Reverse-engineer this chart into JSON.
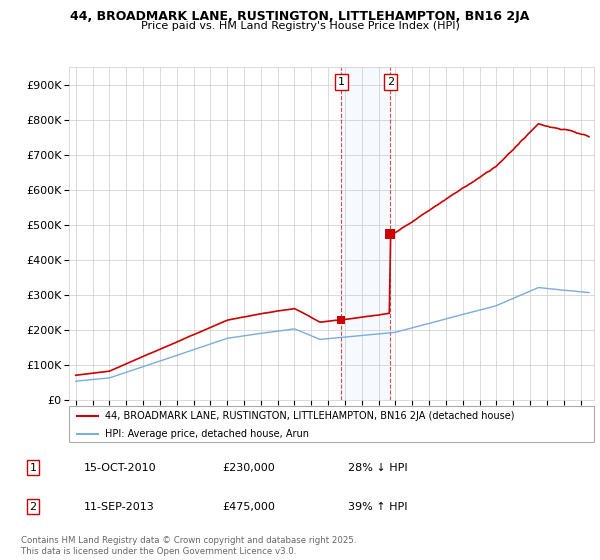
{
  "title1": "44, BROADMARK LANE, RUSTINGTON, LITTLEHAMPTON, BN16 2JA",
  "title2": "Price paid vs. HM Land Registry's House Price Index (HPI)",
  "legend_line1": "44, BROADMARK LANE, RUSTINGTON, LITTLEHAMPTON, BN16 2JA (detached house)",
  "legend_line2": "HPI: Average price, detached house, Arun",
  "sale1_label": "1",
  "sale1_date": "15-OCT-2010",
  "sale1_price": "£230,000",
  "sale1_hpi": "28% ↓ HPI",
  "sale2_label": "2",
  "sale2_date": "11-SEP-2013",
  "sale2_price": "£475,000",
  "sale2_hpi": "39% ↑ HPI",
  "footnote": "Contains HM Land Registry data © Crown copyright and database right 2025.\nThis data is licensed under the Open Government Licence v3.0.",
  "hpi_color": "#7aaddb",
  "price_color": "#cc0000",
  "sale_marker1_year": 2010.79,
  "sale_marker1_price": 230000,
  "sale_marker2_year": 2013.69,
  "sale_marker2_price": 475000,
  "ylim_max": 950000,
  "background_color": "#ffffff",
  "grid_color": "#cccccc"
}
